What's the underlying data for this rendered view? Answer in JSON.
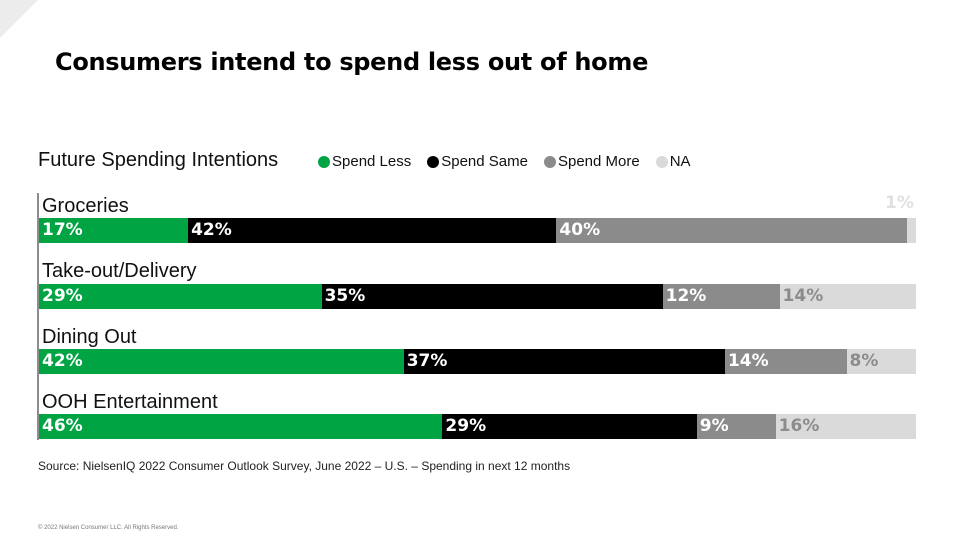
{
  "title": "Consumers intend to spend less out of home",
  "source": "Source: NielsenIQ 2022 Consumer Outlook Survey, June 2022 – U.S. – Spending in next 12 months",
  "copyright": "© 2022 Nielsen Consumer LLC. All Rights Reserved.",
  "chart_data": {
    "type": "bar",
    "orientation": "horizontal-stacked-100",
    "title": "Future Spending Intentions",
    "categories": [
      "Groceries",
      "Take-out/Delivery",
      "Dining Out",
      "OOH Entertainment"
    ],
    "series": [
      {
        "name": "Spend Less",
        "color": "#00a443",
        "label_color": "#ffffff",
        "values": [
          17,
          29,
          42,
          46
        ],
        "labels": [
          "17%",
          "29%",
          "42%",
          "46%"
        ]
      },
      {
        "name": "Spend Same",
        "color": "#000000",
        "label_color": "#ffffff",
        "values": [
          42,
          35,
          37,
          29
        ],
        "labels": [
          "42%",
          "35%",
          "37%",
          "29%"
        ]
      },
      {
        "name": "Spend More",
        "color": "#8b8b8b",
        "label_color": "#ffffff",
        "values": [
          40,
          12,
          14,
          9
        ],
        "labels": [
          "40%",
          "12%",
          "14%",
          "9%"
        ]
      },
      {
        "name": "NA",
        "color": "#dadada",
        "label_color": "#8c8c8c",
        "values": [
          1,
          14,
          8,
          16
        ],
        "labels": [
          "1%",
          "14%",
          "8%",
          "16%"
        ]
      }
    ],
    "legend_position": "top"
  }
}
